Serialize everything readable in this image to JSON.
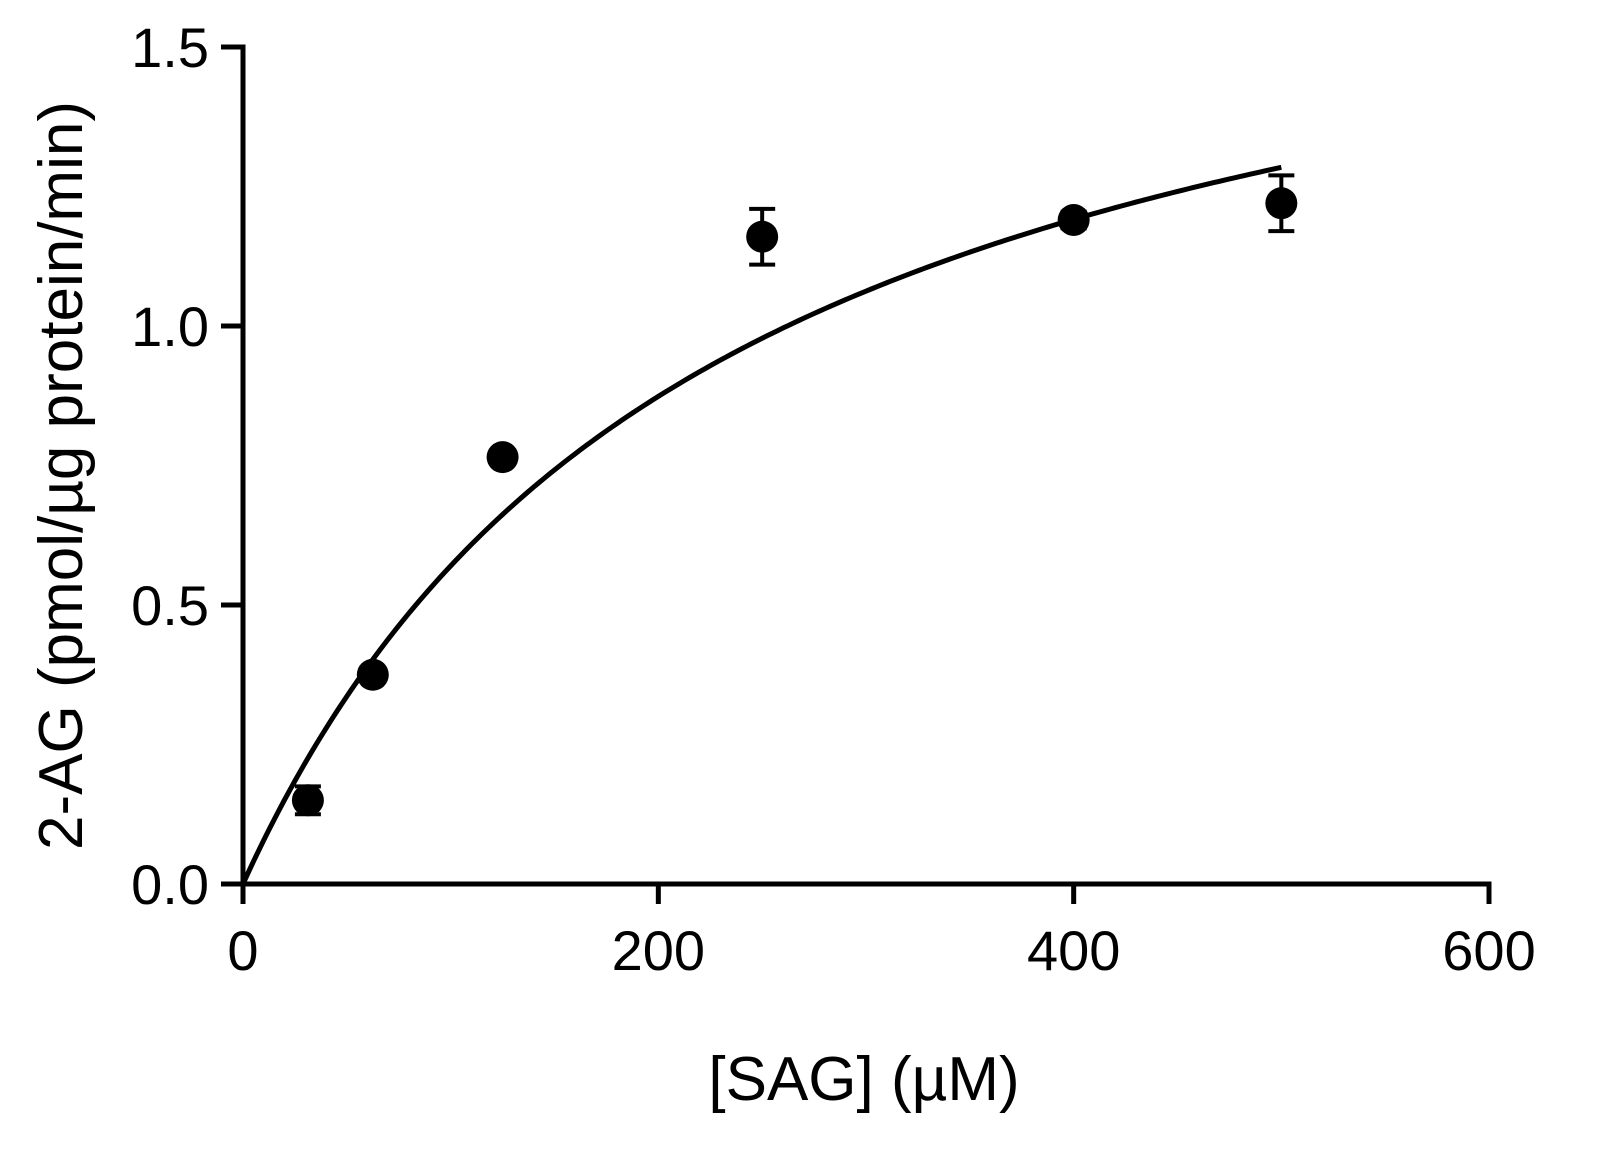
{
  "chart_data": {
    "type": "scatter",
    "title": "",
    "xlabel": "[SAG] (µM)",
    "ylabel": "2-AG  (pmol/µg protein/min)",
    "xlim": [
      0,
      600
    ],
    "ylim": [
      0,
      1.5
    ],
    "x_ticks": [
      "0",
      "200",
      "400",
      "600"
    ],
    "y_ticks": [
      "0.0",
      "0.5",
      "1.0",
      "1.5"
    ],
    "x_tick_values": [
      0,
      200,
      400,
      600
    ],
    "y_tick_values": [
      0,
      0.5,
      1.0,
      1.5
    ],
    "grid": false,
    "series": [
      {
        "x": [
          31.25,
          62.5,
          125,
          250,
          400,
          500
        ],
        "y": [
          0.15,
          0.375,
          0.765,
          1.16,
          1.19,
          1.22
        ],
        "error": [
          0.025,
          0.01,
          0.01,
          0.05,
          0.015,
          0.05
        ]
      }
    ],
    "fit": {
      "type": "michaelis-menten",
      "vmax": 1.87,
      "km": 228,
      "x_range": [
        0,
        500
      ]
    },
    "colors": {
      "points": "#000000",
      "line": "#000000",
      "axes": "#000000"
    }
  }
}
